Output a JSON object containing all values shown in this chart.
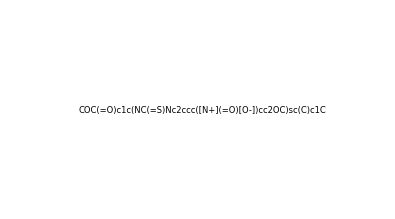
{
  "smiles": "COC(=O)c1c(NC(=S)Nc2ccc([N+](=O)[O-])cc2OC)sc(C)c1C",
  "img_size": [
    395,
    219
  ],
  "background_color": "#ffffff",
  "title": ""
}
